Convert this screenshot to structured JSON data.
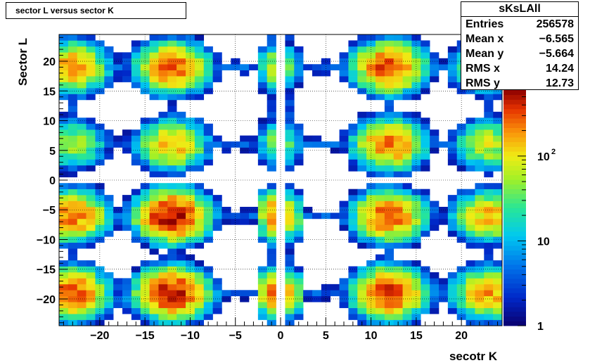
{
  "chart_data": {
    "type": "heatmap",
    "title": "sector L versus sector K",
    "xlabel": "secotr K",
    "ylabel": "Sector L",
    "xlim": [
      -24.5,
      24.5
    ],
    "ylim": [
      -24.5,
      24.5
    ],
    "x_ticks": [
      -20,
      -15,
      -10,
      -5,
      0,
      5,
      10,
      15,
      20
    ],
    "y_ticks": [
      -20,
      -15,
      -10,
      -5,
      0,
      5,
      10,
      15,
      20
    ],
    "x_tick_labels": [
      "−20",
      "−15",
      "−10",
      "−5",
      "0",
      "5",
      "10",
      "15",
      "20"
    ],
    "y_tick_labels": [
      "−20",
      "−15",
      "−10",
      "−5",
      "0",
      "5",
      "10",
      "15",
      "20"
    ],
    "grid": true,
    "z_scale": "log",
    "z_range": [
      1,
      600
    ],
    "colorbar_ticks": [
      {
        "value": 1,
        "label": "1",
        "exp": ""
      },
      {
        "value": 10,
        "label": "10",
        "exp": ""
      },
      {
        "value": 100,
        "label": "10",
        "exp": "2"
      }
    ],
    "colormap": "rainbow (dark blue to dark red)",
    "cluster_x_centers": [
      -23,
      -12,
      -1,
      1,
      12,
      23
    ],
    "cluster_y_centers": [
      -19,
      -6,
      6,
      19
    ],
    "cluster_peaks": {
      "-23": {
        "-19": 300,
        "-6": 250,
        "6": 60,
        "19": 200
      },
      "-12": {
        "-19": 500,
        "-6": 550,
        "6": 150,
        "19": 300
      },
      "-1": {
        "-19": 250,
        "-6": 200,
        "6": 40,
        "19": 60
      },
      "1": {
        "-19": 120,
        "-6": 100,
        "6": 30,
        "19": 30
      },
      "12": {
        "-19": 400,
        "-6": 300,
        "6": 250,
        "19": 350
      },
      "23": {
        "-19": 200,
        "-6": 150,
        "6": 80,
        "19": 100
      }
    },
    "stats": {
      "name": "sKsLAll",
      "rows": [
        {
          "key": "Entries",
          "value": "256578"
        },
        {
          "key": "Mean x",
          "value": "−6.565"
        },
        {
          "key": "Mean y",
          "value": "−5.664"
        },
        {
          "key": "RMS x",
          "value": "14.24"
        },
        {
          "key": "RMS y",
          "value": "12.73"
        }
      ]
    }
  }
}
